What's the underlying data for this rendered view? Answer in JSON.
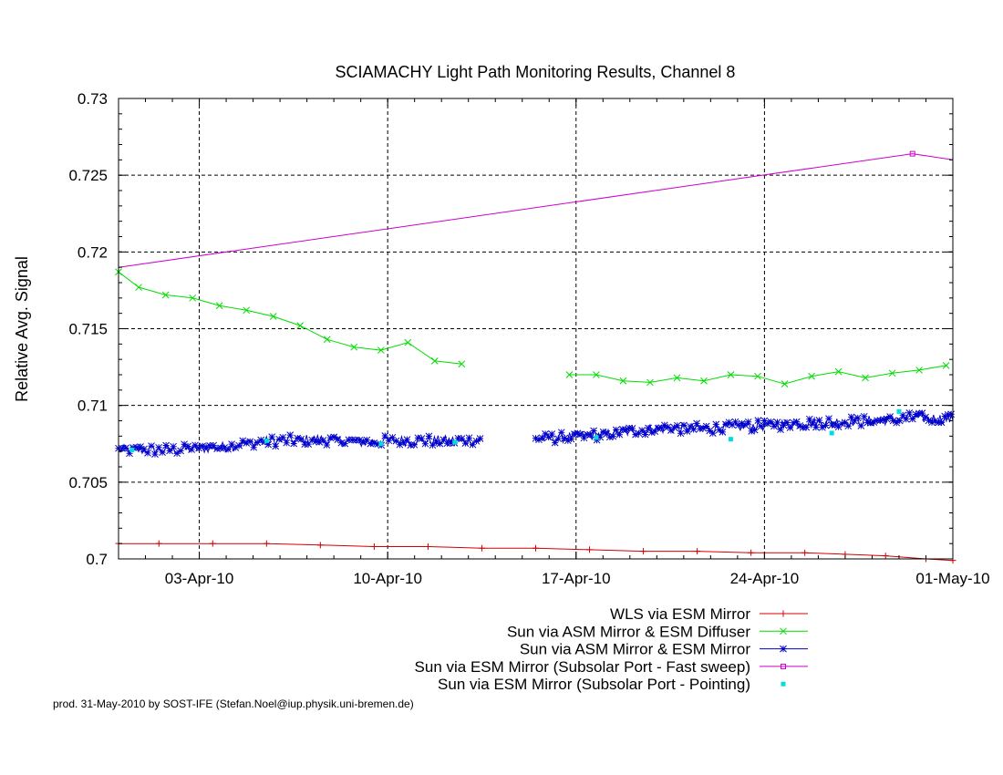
{
  "chart_data": {
    "type": "line",
    "title": "SCIAMACHY Light Path Monitoring Results, Channel 8",
    "ylabel": "Relative Avg. Signal",
    "xlabel": "",
    "xlim": [
      "2010-03-31",
      "2010-05-01"
    ],
    "ylim": [
      0.7,
      0.73
    ],
    "grid": true,
    "legend_position": "bottom-right",
    "footer": "prod. 31-May-2010 by SOST-IFE (Stefan.Noel@iup.physik.uni-bremen.de)",
    "y_ticks": [
      {
        "value": 0.7,
        "label": "0.7"
      },
      {
        "value": 0.705,
        "label": "0.705"
      },
      {
        "value": 0.71,
        "label": "0.71"
      },
      {
        "value": 0.715,
        "label": "0.715"
      },
      {
        "value": 0.72,
        "label": "0.72"
      },
      {
        "value": 0.725,
        "label": "0.725"
      },
      {
        "value": 0.73,
        "label": "0.73"
      }
    ],
    "x_ticks": [
      {
        "value": "2010-04-03",
        "label": "03-Apr-10"
      },
      {
        "value": "2010-04-10",
        "label": "10-Apr-10"
      },
      {
        "value": "2010-04-17",
        "label": "17-Apr-10"
      },
      {
        "value": "2010-04-24",
        "label": "24-Apr-10"
      },
      {
        "value": "2010-05-01",
        "label": "01-May-10"
      }
    ],
    "series": [
      {
        "name": "WLS via ESM Mirror",
        "color": "#d40000",
        "style": "line-plus",
        "points": [
          [
            "2010-03-31T00:00",
            0.701
          ],
          [
            "2010-04-01T12:00",
            0.701
          ],
          [
            "2010-04-03T12:00",
            0.701
          ],
          [
            "2010-04-05T12:00",
            0.701
          ],
          [
            "2010-04-07T12:00",
            0.7009
          ],
          [
            "2010-04-09T12:00",
            0.7008
          ],
          [
            "2010-04-11T12:00",
            0.7008
          ],
          [
            "2010-04-13T12:00",
            0.7007
          ],
          [
            "2010-04-15T12:00",
            0.7007
          ],
          [
            "2010-04-17T12:00",
            0.7006
          ],
          [
            "2010-04-19T12:00",
            0.7005
          ],
          [
            "2010-04-21T12:00",
            0.7005
          ],
          [
            "2010-04-23T12:00",
            0.7004
          ],
          [
            "2010-04-25T12:00",
            0.7004
          ],
          [
            "2010-04-27T00:00",
            0.7003
          ],
          [
            "2010-04-28T12:00",
            0.7002
          ],
          [
            "2010-04-30T00:00",
            0.7
          ],
          [
            "2010-05-01T00:00",
            0.6999
          ]
        ]
      },
      {
        "name": "Sun via ASM Mirror & ESM Diffuser",
        "color": "#00dd00",
        "style": "line-cross",
        "segments": [
          [
            [
              "2010-03-31T00:00",
              0.7187
            ],
            [
              "2010-03-31T18:00",
              0.7177
            ],
            [
              "2010-04-01T18:00",
              0.7172
            ],
            [
              "2010-04-02T18:00",
              0.717
            ],
            [
              "2010-04-03T18:00",
              0.7165
            ],
            [
              "2010-04-04T18:00",
              0.7162
            ],
            [
              "2010-04-05T18:00",
              0.7158
            ],
            [
              "2010-04-06T18:00",
              0.7152
            ],
            [
              "2010-04-07T18:00",
              0.7143
            ],
            [
              "2010-04-08T18:00",
              0.7138
            ],
            [
              "2010-04-09T18:00",
              0.7136
            ],
            [
              "2010-04-10T18:00",
              0.7141
            ],
            [
              "2010-04-11T18:00",
              0.7129
            ],
            [
              "2010-04-12T18:00",
              0.7127
            ]
          ],
          [
            [
              "2010-04-16T18:00",
              0.712
            ],
            [
              "2010-04-17T18:00",
              0.712
            ],
            [
              "2010-04-18T18:00",
              0.7116
            ],
            [
              "2010-04-19T18:00",
              0.7115
            ],
            [
              "2010-04-20T18:00",
              0.7118
            ],
            [
              "2010-04-21T18:00",
              0.7116
            ],
            [
              "2010-04-22T18:00",
              0.712
            ],
            [
              "2010-04-23T18:00",
              0.7119
            ],
            [
              "2010-04-24T18:00",
              0.7114
            ],
            [
              "2010-04-25T18:00",
              0.7119
            ],
            [
              "2010-04-26T18:00",
              0.7122
            ],
            [
              "2010-04-27T18:00",
              0.7118
            ],
            [
              "2010-04-28T18:00",
              0.7121
            ],
            [
              "2010-04-29T18:00",
              0.7123
            ],
            [
              "2010-04-30T18:00",
              0.7126
            ]
          ]
        ]
      },
      {
        "name": "Sun via ASM Mirror & ESM Mirror",
        "color": "#0000cc",
        "style": "line-star",
        "segments": [
          {
            "start": "2010-03-31T00:00",
            "end": "2010-04-13T12:00",
            "count": 200,
            "anchors": [
              [
                "2010-03-31T00:00",
                0.7071
              ],
              [
                "2010-04-02T00:00",
                0.7071
              ],
              [
                "2010-04-04T00:00",
                0.7073
              ],
              [
                "2010-04-05T00:00",
                0.7076
              ],
              [
                "2010-04-06T00:00",
                0.7077
              ],
              [
                "2010-04-07T12:00",
                0.7078
              ],
              [
                "2010-04-09T00:00",
                0.7076
              ],
              [
                "2010-04-10T00:00",
                0.7077
              ],
              [
                "2010-04-11T00:00",
                0.7077
              ],
              [
                "2010-04-13T12:00",
                0.7077
              ]
            ]
          },
          {
            "start": "2010-04-15T12:00",
            "end": "2010-05-01T00:00",
            "count": 260,
            "anchors": [
              [
                "2010-04-15T12:00",
                0.7078
              ],
              [
                "2010-04-18T00:00",
                0.7081
              ],
              [
                "2010-04-20T00:00",
                0.7085
              ],
              [
                "2010-04-22T00:00",
                0.7085
              ],
              [
                "2010-04-24T00:00",
                0.7087
              ],
              [
                "2010-04-26T00:00",
                0.7089
              ],
              [
                "2010-04-28T00:00",
                0.709
              ],
              [
                "2010-04-29T12:00",
                0.7092
              ],
              [
                "2010-05-01T00:00",
                0.7091
              ]
            ]
          }
        ]
      },
      {
        "name": "Sun via ESM Mirror (Subsolar Port - Fast sweep)",
        "color": "#cc00cc",
        "style": "line-square",
        "points": [
          [
            "2010-03-31T00:00",
            0.719
          ],
          [
            "2010-04-29T12:00",
            0.7264
          ],
          [
            "2010-05-01T00:00",
            0.726
          ]
        ],
        "markers": [
          [
            "2010-04-29T12:00",
            0.7264
          ]
        ]
      },
      {
        "name": "Sun via ESM Mirror (Subsolar Port - Pointing)",
        "color": "#00dddd",
        "style": "points",
        "points": [
          [
            "2010-03-31T12:00",
            0.7071
          ],
          [
            "2010-04-05T12:00",
            0.7077
          ],
          [
            "2010-04-09T18:00",
            0.7075
          ],
          [
            "2010-04-12T12:00",
            0.7076
          ],
          [
            "2010-04-17T18:00",
            0.7079
          ],
          [
            "2010-04-22T18:00",
            0.7078
          ],
          [
            "2010-04-26T12:00",
            0.7082
          ],
          [
            "2010-04-29T00:00",
            0.7096
          ]
        ]
      }
    ]
  }
}
